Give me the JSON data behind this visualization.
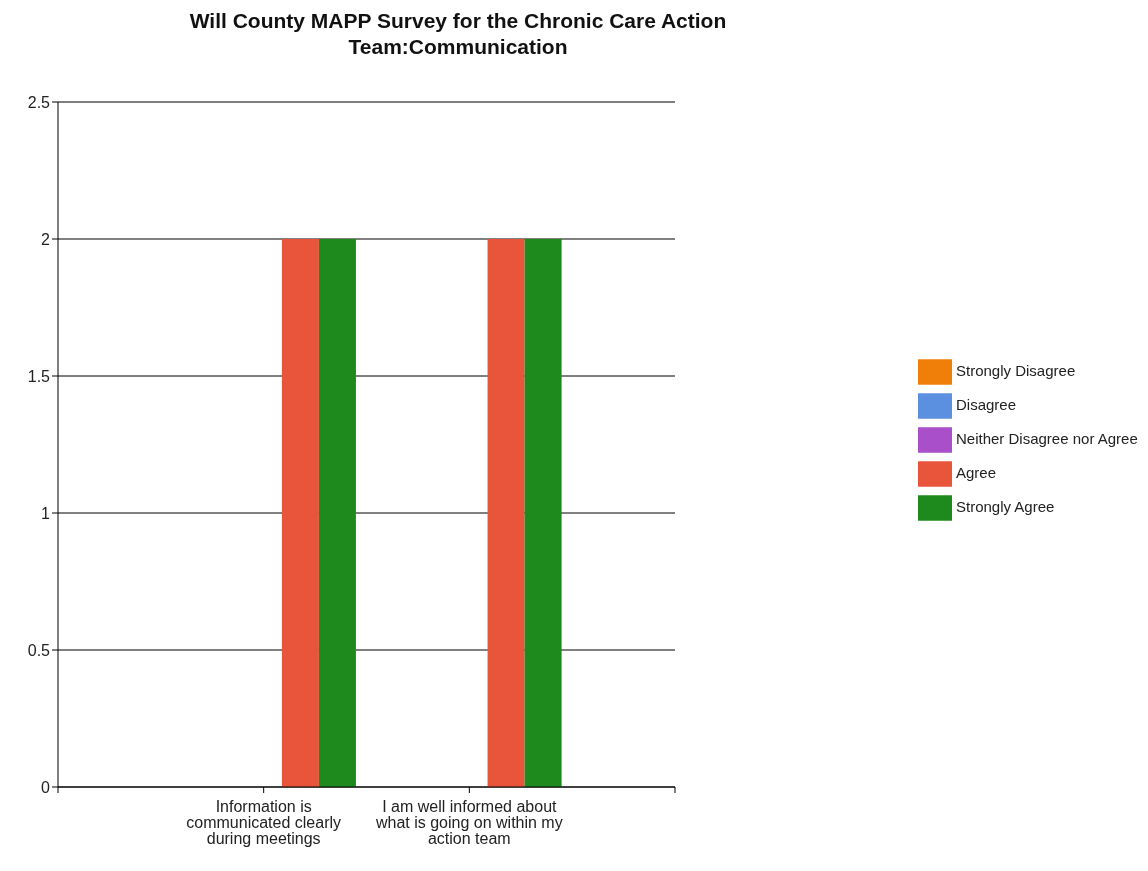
{
  "chart_data": {
    "type": "bar",
    "title": "Will County MAPP Survey for the Chronic Care Action Team:Communication",
    "categories": [
      "Information is communicated clearly during meetings",
      "I am well informed about what is going on within my action team"
    ],
    "series": [
      {
        "name": "Strongly Disagree",
        "color": "#f07f09",
        "values": [
          0,
          0
        ]
      },
      {
        "name": "Disagree",
        "color": "#5b8fdf",
        "values": [
          0,
          0
        ]
      },
      {
        "name": "Neither Disagree nor Agree",
        "color": "#a94fc9",
        "values": [
          0,
          0
        ]
      },
      {
        "name": "Agree",
        "color": "#e8553a",
        "values": [
          2,
          2
        ]
      },
      {
        "name": "Strongly Agree",
        "color": "#1e8a1e",
        "values": [
          2,
          2
        ]
      }
    ],
    "ylim": [
      0,
      2.5
    ],
    "yticks": [
      0,
      0.5,
      1,
      1.5,
      2,
      2.5
    ],
    "grid": "y",
    "legend": "right"
  }
}
